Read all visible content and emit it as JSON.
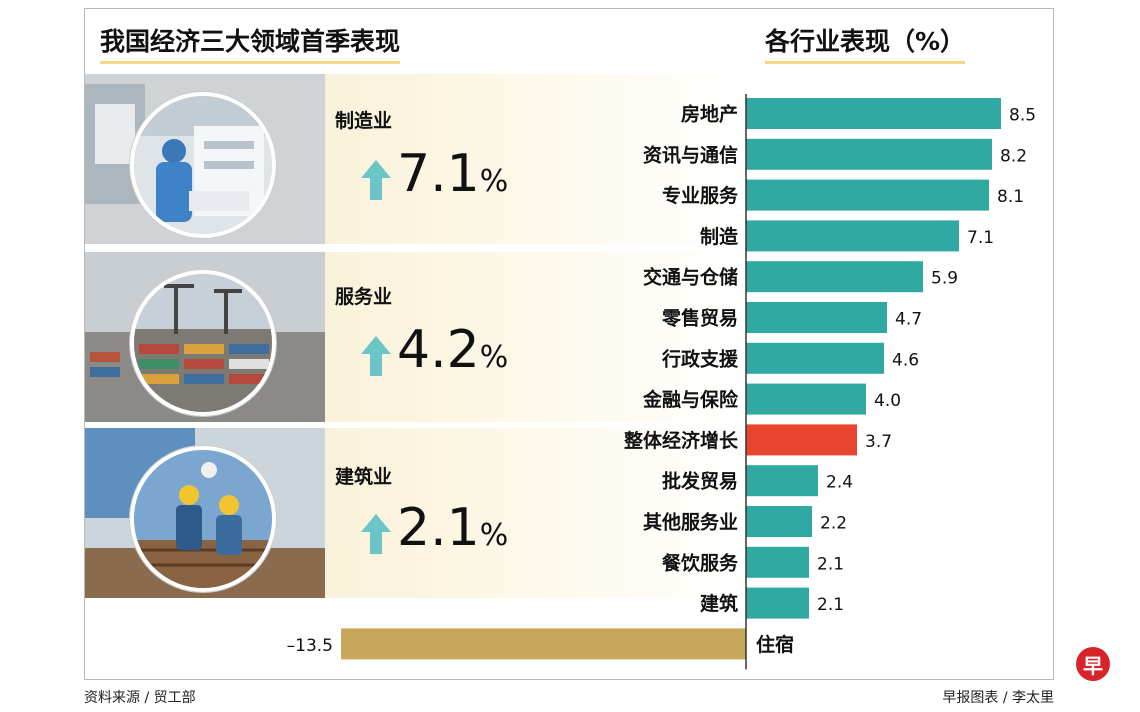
{
  "left_panel": {
    "title": "我国经济三大领域首季表现",
    "sectors": [
      {
        "name": "制造业",
        "value": "7.1",
        "unit": "%"
      },
      {
        "name": "服务业",
        "value": "4.2",
        "unit": "%"
      },
      {
        "name": "建筑业",
        "value": "2.1",
        "unit": "%"
      }
    ],
    "arrow_icon": "up-arrow-icon",
    "arrow_color": "#6bc4c6"
  },
  "footer": {
    "source": "资料来源 / 贸工部",
    "credit": "早报图表 / 李太里",
    "logo_text": "早"
  },
  "chart_data": {
    "type": "bar",
    "orientation": "horizontal",
    "title": "各行业表现（%）",
    "categories": [
      "房地产",
      "资讯与通信",
      "专业服务",
      "制造",
      "交通与仓储",
      "零售贸易",
      "行政支援",
      "金融与保险",
      "整体经济增长",
      "批发贸易",
      "其他服务业",
      "餐饮服务",
      "建筑",
      "住宿"
    ],
    "values": [
      8.5,
      8.2,
      8.1,
      7.1,
      5.9,
      4.7,
      4.6,
      4.0,
      3.7,
      2.4,
      2.2,
      2.1,
      2.1,
      -13.5
    ],
    "value_labels": [
      "8.5",
      "8.2",
      "8.1",
      "7.1",
      "5.9",
      "4.7",
      "4.6",
      "4.0",
      "3.7",
      "2.4",
      "2.2",
      "2.1",
      "2.1",
      "–13.5"
    ],
    "colors": {
      "default": "#2fa9a2",
      "highlight": "#e8442e",
      "negative": "#c9a75a"
    },
    "highlight_category": "整体经济增长"
  }
}
